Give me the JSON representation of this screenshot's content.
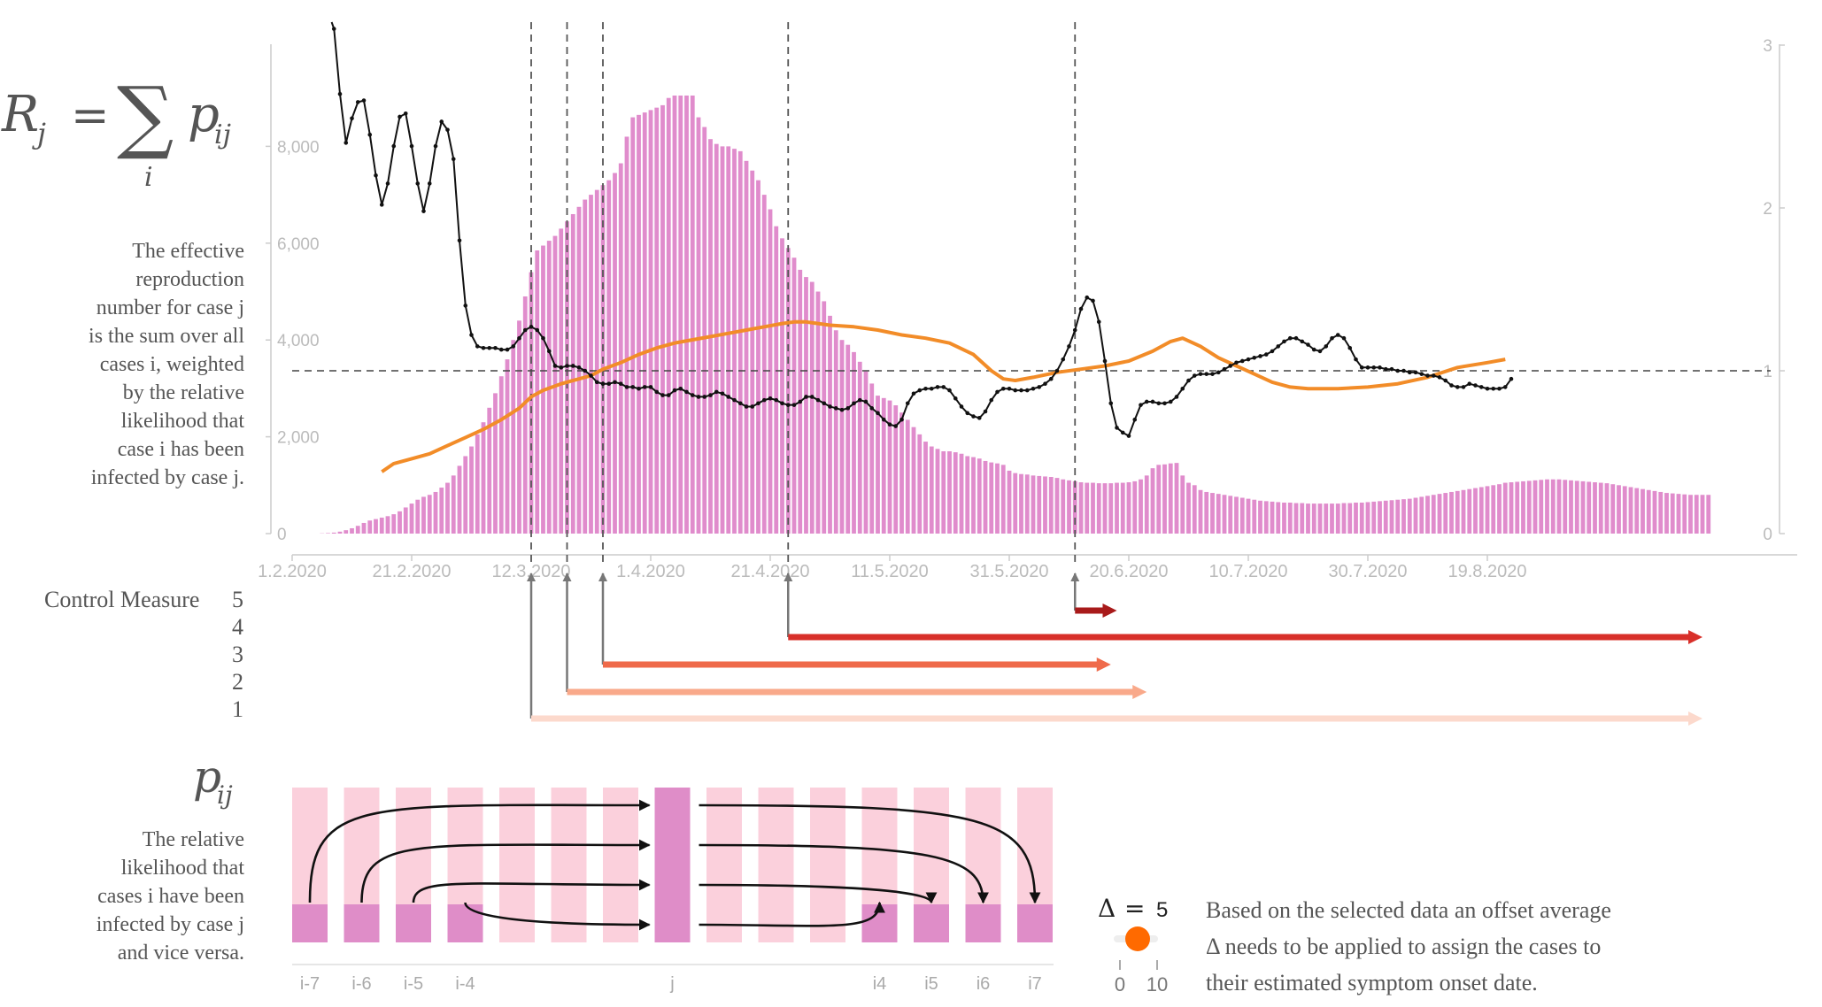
{
  "formula": {
    "rj": "R",
    "rj_sub": "j",
    "equals": "=",
    "sum": "∑",
    "sum_index": "i",
    "p": "p",
    "p_sub": "ij"
  },
  "rj_description": [
    "The effective",
    "reproduction",
    "number for case j",
    "is the sum over all",
    "cases i, weighted",
    "by the relative",
    "likelihood that",
    "case i has been",
    "infected by case j."
  ],
  "pij_description": [
    "The relative",
    "likelihood that",
    "cases i have been",
    "infected by case j",
    "and vice versa."
  ],
  "control_measures": {
    "title": "Control Measure",
    "labels": [
      "5",
      "4",
      "3",
      "2",
      "1"
    ]
  },
  "pij_diagram": {
    "left_labels": [
      "i-7",
      "i-6",
      "i-5",
      "i-4"
    ],
    "center_label": "j",
    "right_labels": [
      "i4",
      "i5",
      "i6",
      "i7"
    ]
  },
  "offset_control": {
    "delta_symbol": "Δ",
    "equals": "=",
    "value": "5",
    "min_label": "0",
    "max_label": "10",
    "note_lines": [
      "Based on the selected data an offset average",
      "Δ needs to be applied to assign the cases to",
      "their estimated symptom onset date."
    ]
  },
  "colors": {
    "bars": "#e08ccc",
    "r_line": "#111111",
    "orange_line": "#f28c28",
    "measure_1": "#fcd9cc",
    "measure_2": "#f9a98a",
    "measure_3": "#ef6a4a",
    "measure_4": "#d8302a",
    "measure_5": "#a81a1a",
    "slider_knob": "#ff6a00",
    "pij_light": "#fbd0dc",
    "pij_dark": "#df8dc8"
  },
  "chart_data": {
    "type": "bar",
    "x_tick_labels": [
      "1.2.2020",
      "21.2.2020",
      "12.3.2020",
      "1.4.2020",
      "21.4.2020",
      "11.5.2020",
      "31.5.2020",
      "20.6.2020",
      "10.7.2020",
      "30.7.2020",
      "19.8.2020"
    ],
    "y_left_ticks": [
      "0",
      "2,000",
      "4,000",
      "6,000",
      "8,000"
    ],
    "y_left_range": [
      0,
      9000
    ],
    "y_right_ticks": [
      "0",
      "1",
      "2",
      "3"
    ],
    "y_right_range": [
      0,
      3
    ],
    "x_start_date": "1.2.2020",
    "bars": {
      "start_day": 5,
      "values": [
        5,
        10,
        20,
        40,
        70,
        110,
        160,
        220,
        270,
        300,
        330,
        360,
        400,
        460,
        540,
        620,
        700,
        760,
        800,
        860,
        950,
        1050,
        1200,
        1400,
        1600,
        1800,
        2050,
        2300,
        2600,
        2900,
        3250,
        3600,
        4000,
        4400,
        4900,
        5400,
        5850,
        5950,
        6050,
        6150,
        6300,
        6450,
        6600,
        6750,
        6900,
        7000,
        7100,
        7200,
        7300,
        7450,
        7650,
        8200,
        8600,
        8650,
        8700,
        8750,
        8800,
        8850,
        9000,
        9050,
        9050,
        9050,
        9050,
        8600,
        8400,
        8150,
        8050,
        8000,
        8000,
        7950,
        7900,
        7700,
        7500,
        7300,
        7000,
        6700,
        6350,
        6100,
        5900,
        5700,
        5450,
        5300,
        5200,
        5000,
        4800,
        4500,
        4200,
        4000,
        3900,
        3750,
        3550,
        3350,
        3100,
        2850,
        2800,
        2750,
        2650,
        2500,
        2350,
        2200,
        2050,
        1900,
        1800,
        1750,
        1700,
        1700,
        1680,
        1650,
        1600,
        1580,
        1550,
        1500,
        1470,
        1450,
        1420,
        1300,
        1250,
        1230,
        1220,
        1200,
        1190,
        1180,
        1170,
        1150,
        1120,
        1100,
        1080,
        1060,
        1050,
        1050,
        1040,
        1040,
        1040,
        1050,
        1050,
        1060,
        1080,
        1120,
        1200,
        1350,
        1420,
        1430,
        1450,
        1460,
        1200,
        1050,
        1000,
        900,
        860,
        840,
        820,
        800,
        780,
        760,
        740,
        720,
        700,
        680,
        670,
        660,
        650,
        640,
        640,
        630,
        630,
        620,
        620,
        620,
        620,
        620,
        620,
        630,
        630,
        640,
        640,
        650,
        660,
        670,
        680,
        690,
        700,
        710,
        720,
        740,
        760,
        780,
        800,
        820,
        840,
        860,
        880,
        900,
        920,
        940,
        960,
        980,
        1000,
        1020,
        1050,
        1060,
        1070,
        1080,
        1090,
        1100,
        1110,
        1120,
        1120,
        1120,
        1110,
        1100,
        1090,
        1080,
        1070,
        1060,
        1050,
        1040,
        1020,
        1000,
        980,
        960,
        940,
        920,
        900,
        880,
        860,
        840,
        830,
        820,
        810,
        800,
        800,
        800,
        800
      ]
    },
    "r_series": {
      "axis": "right",
      "points": [
        [
          7,
          3.1
        ],
        [
          8,
          2.7
        ],
        [
          9,
          2.4
        ],
        [
          10,
          2.55
        ],
        [
          11,
          2.65
        ],
        [
          12,
          2.66
        ],
        [
          13,
          2.45
        ],
        [
          14,
          2.2
        ],
        [
          15,
          2.02
        ],
        [
          16,
          2.15
        ],
        [
          17,
          2.38
        ],
        [
          18,
          2.56
        ],
        [
          19,
          2.58
        ],
        [
          20,
          2.38
        ],
        [
          21,
          2.15
        ],
        [
          22,
          1.98
        ],
        [
          23,
          2.15
        ],
        [
          24,
          2.38
        ],
        [
          25,
          2.53
        ],
        [
          26,
          2.48
        ],
        [
          27,
          2.3
        ],
        [
          28,
          1.8
        ],
        [
          29,
          1.4
        ],
        [
          30,
          1.22
        ],
        [
          31,
          1.15
        ],
        [
          32,
          1.14
        ],
        [
          33,
          1.14
        ],
        [
          34,
          1.14
        ],
        [
          35,
          1.13
        ],
        [
          36,
          1.13
        ],
        [
          37,
          1.15
        ],
        [
          38,
          1.2
        ],
        [
          39,
          1.25
        ],
        [
          40,
          1.27
        ],
        [
          41,
          1.25
        ],
        [
          42,
          1.2
        ],
        [
          43,
          1.12
        ],
        [
          44,
          1.03
        ],
        [
          45,
          1.02
        ],
        [
          46,
          1.03
        ],
        [
          47,
          1.03
        ],
        [
          48,
          1.02
        ],
        [
          49,
          1.0
        ],
        [
          50,
          0.97
        ],
        [
          51,
          0.93
        ],
        [
          52,
          0.92
        ],
        [
          53,
          0.92
        ],
        [
          54,
          0.93
        ],
        [
          55,
          0.92
        ],
        [
          56,
          0.9
        ],
        [
          57,
          0.9
        ],
        [
          58,
          0.89
        ],
        [
          59,
          0.9
        ],
        [
          60,
          0.9
        ],
        [
          61,
          0.87
        ],
        [
          62,
          0.85
        ],
        [
          63,
          0.85
        ],
        [
          64,
          0.88
        ],
        [
          65,
          0.89
        ],
        [
          66,
          0.87
        ],
        [
          67,
          0.85
        ],
        [
          68,
          0.84
        ],
        [
          69,
          0.84
        ],
        [
          70,
          0.85
        ],
        [
          71,
          0.87
        ],
        [
          72,
          0.86
        ],
        [
          73,
          0.84
        ],
        [
          74,
          0.82
        ],
        [
          75,
          0.8
        ],
        [
          76,
          0.78
        ],
        [
          77,
          0.78
        ],
        [
          78,
          0.8
        ],
        [
          79,
          0.82
        ],
        [
          80,
          0.83
        ],
        [
          81,
          0.82
        ],
        [
          82,
          0.8
        ],
        [
          83,
          0.79
        ],
        [
          84,
          0.79
        ],
        [
          85,
          0.81
        ],
        [
          86,
          0.84
        ],
        [
          87,
          0.84
        ],
        [
          88,
          0.82
        ],
        [
          89,
          0.8
        ],
        [
          90,
          0.78
        ],
        [
          91,
          0.77
        ],
        [
          92,
          0.76
        ],
        [
          93,
          0.77
        ],
        [
          94,
          0.8
        ],
        [
          95,
          0.82
        ],
        [
          96,
          0.81
        ],
        [
          97,
          0.77
        ],
        [
          98,
          0.74
        ],
        [
          99,
          0.7
        ],
        [
          100,
          0.67
        ],
        [
          101,
          0.66
        ],
        [
          102,
          0.7
        ],
        [
          103,
          0.8
        ],
        [
          104,
          0.86
        ],
        [
          105,
          0.88
        ],
        [
          106,
          0.89
        ],
        [
          107,
          0.89
        ],
        [
          108,
          0.9
        ],
        [
          109,
          0.9
        ],
        [
          110,
          0.88
        ],
        [
          111,
          0.83
        ],
        [
          112,
          0.78
        ],
        [
          113,
          0.74
        ],
        [
          114,
          0.72
        ],
        [
          115,
          0.71
        ],
        [
          116,
          0.75
        ],
        [
          117,
          0.82
        ],
        [
          118,
          0.87
        ],
        [
          119,
          0.89
        ],
        [
          120,
          0.89
        ],
        [
          121,
          0.88
        ],
        [
          122,
          0.88
        ],
        [
          123,
          0.88
        ],
        [
          124,
          0.89
        ],
        [
          125,
          0.9
        ],
        [
          126,
          0.92
        ],
        [
          127,
          0.95
        ],
        [
          128,
          1.0
        ],
        [
          129,
          1.07
        ],
        [
          130,
          1.15
        ],
        [
          131,
          1.25
        ],
        [
          132,
          1.38
        ],
        [
          133,
          1.45
        ],
        [
          134,
          1.43
        ],
        [
          135,
          1.3
        ],
        [
          136,
          1.06
        ],
        [
          137,
          0.8
        ],
        [
          138,
          0.65
        ],
        [
          139,
          0.62
        ],
        [
          140,
          0.6
        ],
        [
          141,
          0.7
        ],
        [
          142,
          0.79
        ],
        [
          143,
          0.81
        ],
        [
          144,
          0.81
        ],
        [
          145,
          0.8
        ],
        [
          146,
          0.8
        ],
        [
          147,
          0.81
        ],
        [
          148,
          0.84
        ],
        [
          149,
          0.89
        ],
        [
          150,
          0.94
        ],
        [
          151,
          0.97
        ],
        [
          152,
          0.98
        ],
        [
          153,
          0.98
        ],
        [
          154,
          0.98
        ],
        [
          155,
          0.99
        ],
        [
          156,
          1.01
        ],
        [
          157,
          1.03
        ],
        [
          158,
          1.05
        ],
        [
          159,
          1.06
        ],
        [
          160,
          1.07
        ],
        [
          161,
          1.08
        ],
        [
          162,
          1.09
        ],
        [
          163,
          1.1
        ],
        [
          164,
          1.12
        ],
        [
          165,
          1.15
        ],
        [
          166,
          1.18
        ],
        [
          167,
          1.2
        ],
        [
          168,
          1.2
        ],
        [
          169,
          1.18
        ],
        [
          170,
          1.16
        ],
        [
          171,
          1.13
        ],
        [
          172,
          1.12
        ],
        [
          173,
          1.15
        ],
        [
          174,
          1.2
        ],
        [
          175,
          1.22
        ],
        [
          176,
          1.2
        ],
        [
          177,
          1.14
        ],
        [
          178,
          1.07
        ],
        [
          179,
          1.02
        ],
        [
          180,
          1.02
        ],
        [
          181,
          1.02
        ],
        [
          182,
          1.02
        ],
        [
          183,
          1.01
        ],
        [
          184,
          1.01
        ],
        [
          185,
          1.0
        ],
        [
          186,
          1.0
        ],
        [
          187,
          0.99
        ],
        [
          188,
          0.99
        ],
        [
          189,
          0.98
        ],
        [
          190,
          0.97
        ],
        [
          191,
          0.97
        ],
        [
          192,
          0.96
        ],
        [
          193,
          0.94
        ],
        [
          194,
          0.91
        ],
        [
          195,
          0.9
        ],
        [
          196,
          0.9
        ],
        [
          197,
          0.92
        ],
        [
          198,
          0.91
        ],
        [
          199,
          0.9
        ],
        [
          200,
          0.89
        ],
        [
          201,
          0.89
        ],
        [
          202,
          0.89
        ],
        [
          203,
          0.9
        ],
        [
          204,
          0.95
        ]
      ]
    },
    "orange_series": {
      "axis": "right",
      "points": [
        [
          15,
          0.38
        ],
        [
          17,
          0.43
        ],
        [
          20,
          0.46
        ],
        [
          23,
          0.49
        ],
        [
          26,
          0.54
        ],
        [
          29,
          0.59
        ],
        [
          32,
          0.64
        ],
        [
          35,
          0.7
        ],
        [
          38,
          0.77
        ],
        [
          40,
          0.84
        ],
        [
          42,
          0.88
        ],
        [
          45,
          0.92
        ],
        [
          48,
          0.95
        ],
        [
          50,
          0.97
        ],
        [
          52,
          1.01
        ],
        [
          55,
          1.05
        ],
        [
          58,
          1.1
        ],
        [
          61,
          1.14
        ],
        [
          64,
          1.17
        ],
        [
          67,
          1.19
        ],
        [
          70,
          1.21
        ],
        [
          73,
          1.23
        ],
        [
          76,
          1.25
        ],
        [
          79,
          1.27
        ],
        [
          82,
          1.29
        ],
        [
          84,
          1.3
        ],
        [
          86,
          1.3
        ],
        [
          88,
          1.29
        ],
        [
          90,
          1.28
        ],
        [
          94,
          1.27
        ],
        [
          98,
          1.25
        ],
        [
          102,
          1.22
        ],
        [
          106,
          1.2
        ],
        [
          110,
          1.17
        ],
        [
          114,
          1.1
        ],
        [
          117,
          1.0
        ],
        [
          119,
          0.95
        ],
        [
          121,
          0.94
        ],
        [
          124,
          0.96
        ],
        [
          128,
          0.99
        ],
        [
          132,
          1.01
        ],
        [
          136,
          1.03
        ],
        [
          140,
          1.06
        ],
        [
          144,
          1.12
        ],
        [
          147,
          1.18
        ],
        [
          149,
          1.2
        ],
        [
          152,
          1.15
        ],
        [
          155,
          1.08
        ],
        [
          158,
          1.03
        ],
        [
          161,
          0.98
        ],
        [
          164,
          0.93
        ],
        [
          167,
          0.9
        ],
        [
          170,
          0.89
        ],
        [
          175,
          0.89
        ],
        [
          180,
          0.9
        ],
        [
          185,
          0.92
        ],
        [
          190,
          0.96
        ],
        [
          195,
          1.02
        ],
        [
          200,
          1.05
        ],
        [
          203,
          1.07
        ]
      ]
    },
    "threshold_line": {
      "axis": "right",
      "value": 1
    },
    "intervention_days": [
      40,
      46,
      52,
      83,
      131
    ],
    "control_measure_periods": [
      {
        "measure": "1",
        "start_day": 40,
        "end_day": 236
      },
      {
        "measure": "2",
        "start_day": 46,
        "end_day": 143
      },
      {
        "measure": "3",
        "start_day": 52,
        "end_day": 137
      },
      {
        "measure": "4",
        "start_day": 83,
        "end_day": 236
      },
      {
        "measure": "5",
        "start_day": 131,
        "end_day": 138
      }
    ]
  }
}
